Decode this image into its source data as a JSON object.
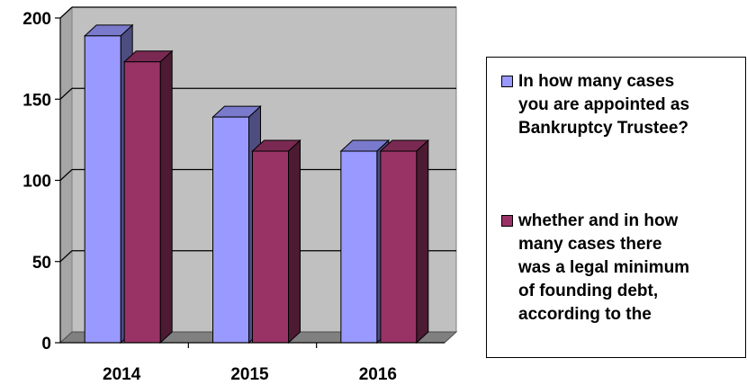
{
  "chart_data": {
    "type": "bar",
    "categories": [
      "2014",
      "2015",
      "2016"
    ],
    "series": [
      {
        "name": "In how many cases\nyou are appointed as\nBankruptcy Trustee?",
        "values": [
          189,
          139,
          118
        ],
        "color": "#9999FF"
      },
      {
        "name": "whether and in how\nmany cases there\nwas a legal minimum\nof founding debt,\naccording to the",
        "values": [
          173,
          118,
          118
        ],
        "color": "#993366"
      }
    ],
    "ylim": [
      0,
      200
    ],
    "yticks": [
      0,
      50,
      100,
      150,
      200
    ],
    "grid": true,
    "legend_position": "right",
    "style": "3d"
  }
}
